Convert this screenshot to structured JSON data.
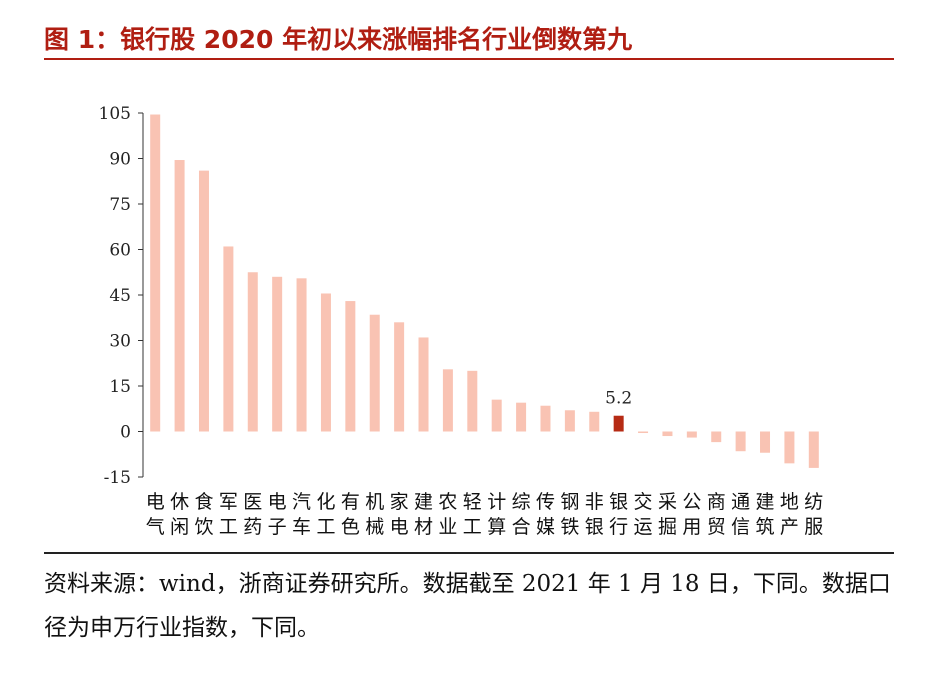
{
  "title": "图 1：银行股 2020 年初以来涨幅排名行业倒数第九",
  "source_note": "资料来源：wind，浙商证券研究所。数据截至 2021 年 1 月 18 日，下同。数据口径为申万行业指数，下同。",
  "colors": {
    "title": "#b01e12",
    "bar": "#f9c3b3",
    "highlight": "#b62b14"
  },
  "chart_data": {
    "type": "bar",
    "title": "",
    "xlabel": "",
    "ylabel": "",
    "ylim": [
      -15,
      105
    ],
    "yticks": [
      105,
      90,
      75,
      60,
      45,
      30,
      15,
      0,
      -15
    ],
    "grid": false,
    "categories": [
      "电气",
      "休闲",
      "食饮",
      "军工",
      "医药",
      "电子",
      "汽车",
      "化工",
      "有色",
      "机械",
      "家电",
      "建材",
      "农业",
      "轻工",
      "计算",
      "综合",
      "传媒",
      "钢铁",
      "非银",
      "银行",
      "交运",
      "采掘",
      "公用",
      "商贸",
      "通信",
      "建筑",
      "地产",
      "纺服"
    ],
    "values": [
      104.5,
      89.5,
      86,
      61,
      52.5,
      51,
      50.5,
      45.5,
      43,
      38.5,
      36,
      31,
      20.5,
      20,
      10.5,
      9.5,
      8.5,
      7,
      6.5,
      5.2,
      -0.5,
      -1.5,
      -2,
      -3.5,
      -6.5,
      -7,
      -10.5,
      -12
    ],
    "highlight_index": 19,
    "data_labels": [
      {
        "index": 19,
        "text": "5.2"
      }
    ]
  }
}
